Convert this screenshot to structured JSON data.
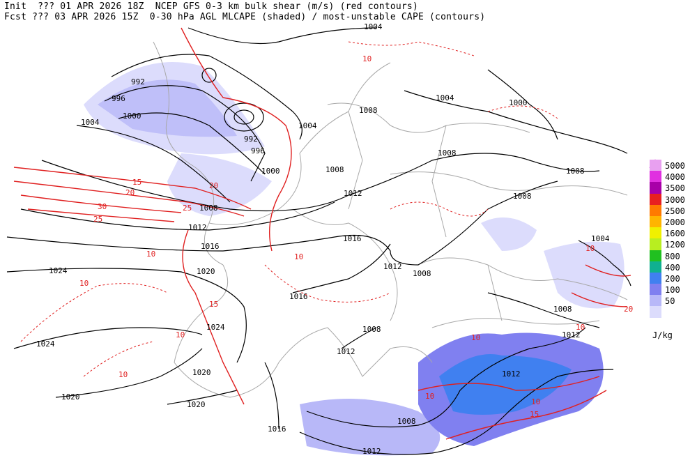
{
  "header": {
    "line1": "Init  ??? 01 APR 2026 18Z  NCEP GFS 0-3 km bulk shear (m/s) (red contours)",
    "line2": "Fcst ??? 03 APR 2026 15Z  0-30 hPa AGL MLCAPE (shaded) / most-unstable CAPE (contours)"
  },
  "legend": {
    "units": "J/kg",
    "items": [
      {
        "label": "5000",
        "color": "#e8a0f0"
      },
      {
        "label": "4000",
        "color": "#e030e0"
      },
      {
        "label": "3500",
        "color": "#a800a8"
      },
      {
        "label": "3000",
        "color": "#e82020"
      },
      {
        "label": "2500",
        "color": "#ff7a00"
      },
      {
        "label": "2000",
        "color": "#ffb400"
      },
      {
        "label": "1600",
        "color": "#f0f000"
      },
      {
        "label": "1200",
        "color": "#b8ee20"
      },
      {
        "label": "800",
        "color": "#20c020"
      },
      {
        "label": "400",
        "color": "#10b090"
      },
      {
        "label": "200",
        "color": "#4080f0"
      },
      {
        "label": "100",
        "color": "#8080f0"
      },
      {
        "label": "50",
        "color": "#b8b8f8"
      },
      {
        "label": "",
        "color": "#dcdcfc"
      }
    ]
  },
  "isobar_labels": [
    "1004",
    "992",
    "996",
    "1000",
    "1004",
    "992",
    "996",
    "1000",
    "1004",
    "1008",
    "1004",
    "1000",
    "1008",
    "1008",
    "1012",
    "1008",
    "1008",
    "1012",
    "1016",
    "1016",
    "1012",
    "1008",
    "1004",
    "1024",
    "1020",
    "1016",
    "1008",
    "1024",
    "1024",
    "1012",
    "1008",
    "1008",
    "1012",
    "1020",
    "1020",
    "1016",
    "1008",
    "1012",
    "1012",
    "1020"
  ],
  "shear_labels": [
    "20",
    "15",
    "20",
    "30",
    "25",
    "25",
    "10",
    "10",
    "10",
    "10",
    "10",
    "10",
    "10",
    "15",
    "20",
    "10",
    "10",
    "15",
    "10",
    "10"
  ],
  "colors": {
    "background": "#ffffff",
    "map_bg": "#ffffff",
    "coast": "#a8a8a8",
    "isobar": "#000000",
    "shear": "#e02020",
    "cape_low": "#dcdcfc",
    "cape_mid": "#b8b8f8",
    "cape_high": "#8080f0",
    "cape_top": "#4080f0"
  }
}
